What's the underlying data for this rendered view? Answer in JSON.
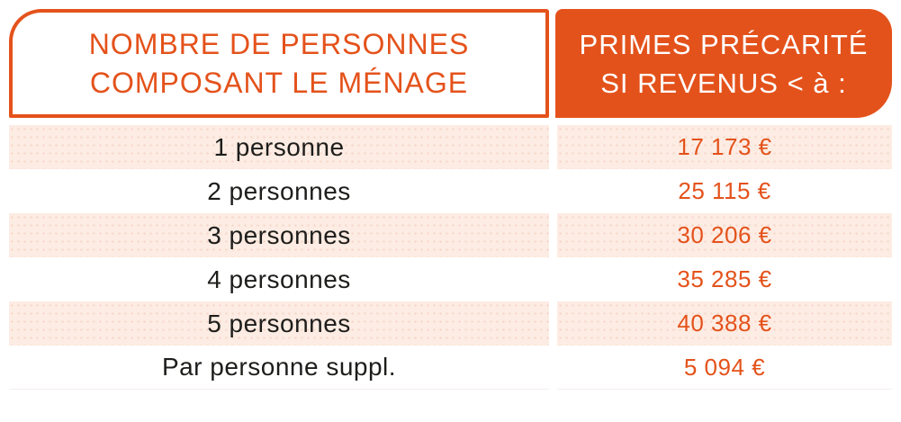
{
  "colors": {
    "accent_orange": "#e4521b",
    "row_alt_background": "#fdece3",
    "row_dot_texture": "#f5d6c9",
    "label_text": "#1d1d1b",
    "header_right_text": "#ffffff"
  },
  "header": {
    "household_col": {
      "line1": "NOMBRE DE PERSONNES",
      "line2": "COMPOSANT LE MÉNAGE"
    },
    "primes_col": {
      "line1": "PRIMES PRÉCARITÉ",
      "line2": "SI REVENUS < à :"
    }
  },
  "rows": [
    {
      "label": "1 personne",
      "value": "17 173 €"
    },
    {
      "label": "2 personnes",
      "value": "25 115 €"
    },
    {
      "label": "3 personnes",
      "value": "30 206 €"
    },
    {
      "label": "4 personnes",
      "value": "35 285 €"
    },
    {
      "label": "5 personnes",
      "value": "40 388 €"
    },
    {
      "label": "Par personne suppl.",
      "value": "5 094 €"
    }
  ],
  "chart_data": {
    "type": "table",
    "title": "",
    "columns": [
      "NOMBRE DE PERSONNES COMPOSANT LE MÉNAGE",
      "PRIMES PRÉCARITÉ SI REVENUS < à :"
    ],
    "rows": [
      [
        "1 personne",
        "17 173 €"
      ],
      [
        "2 personnes",
        "25 115 €"
      ],
      [
        "3 personnes",
        "30 206 €"
      ],
      [
        "4 personnes",
        "35 285 €"
      ],
      [
        "5 personnes",
        "40 388 €"
      ],
      [
        "Par personne suppl.",
        "5 094 €"
      ]
    ],
    "categories": [
      "1 personne",
      "2 personnes",
      "3 personnes",
      "4 personnes",
      "5 personnes",
      "Par personne suppl."
    ],
    "values_eur": [
      17173,
      25115,
      30206,
      35285,
      40388,
      5094
    ],
    "currency": "EUR",
    "layout": "two-column table, alternating peach/white rows, orange accent header"
  }
}
